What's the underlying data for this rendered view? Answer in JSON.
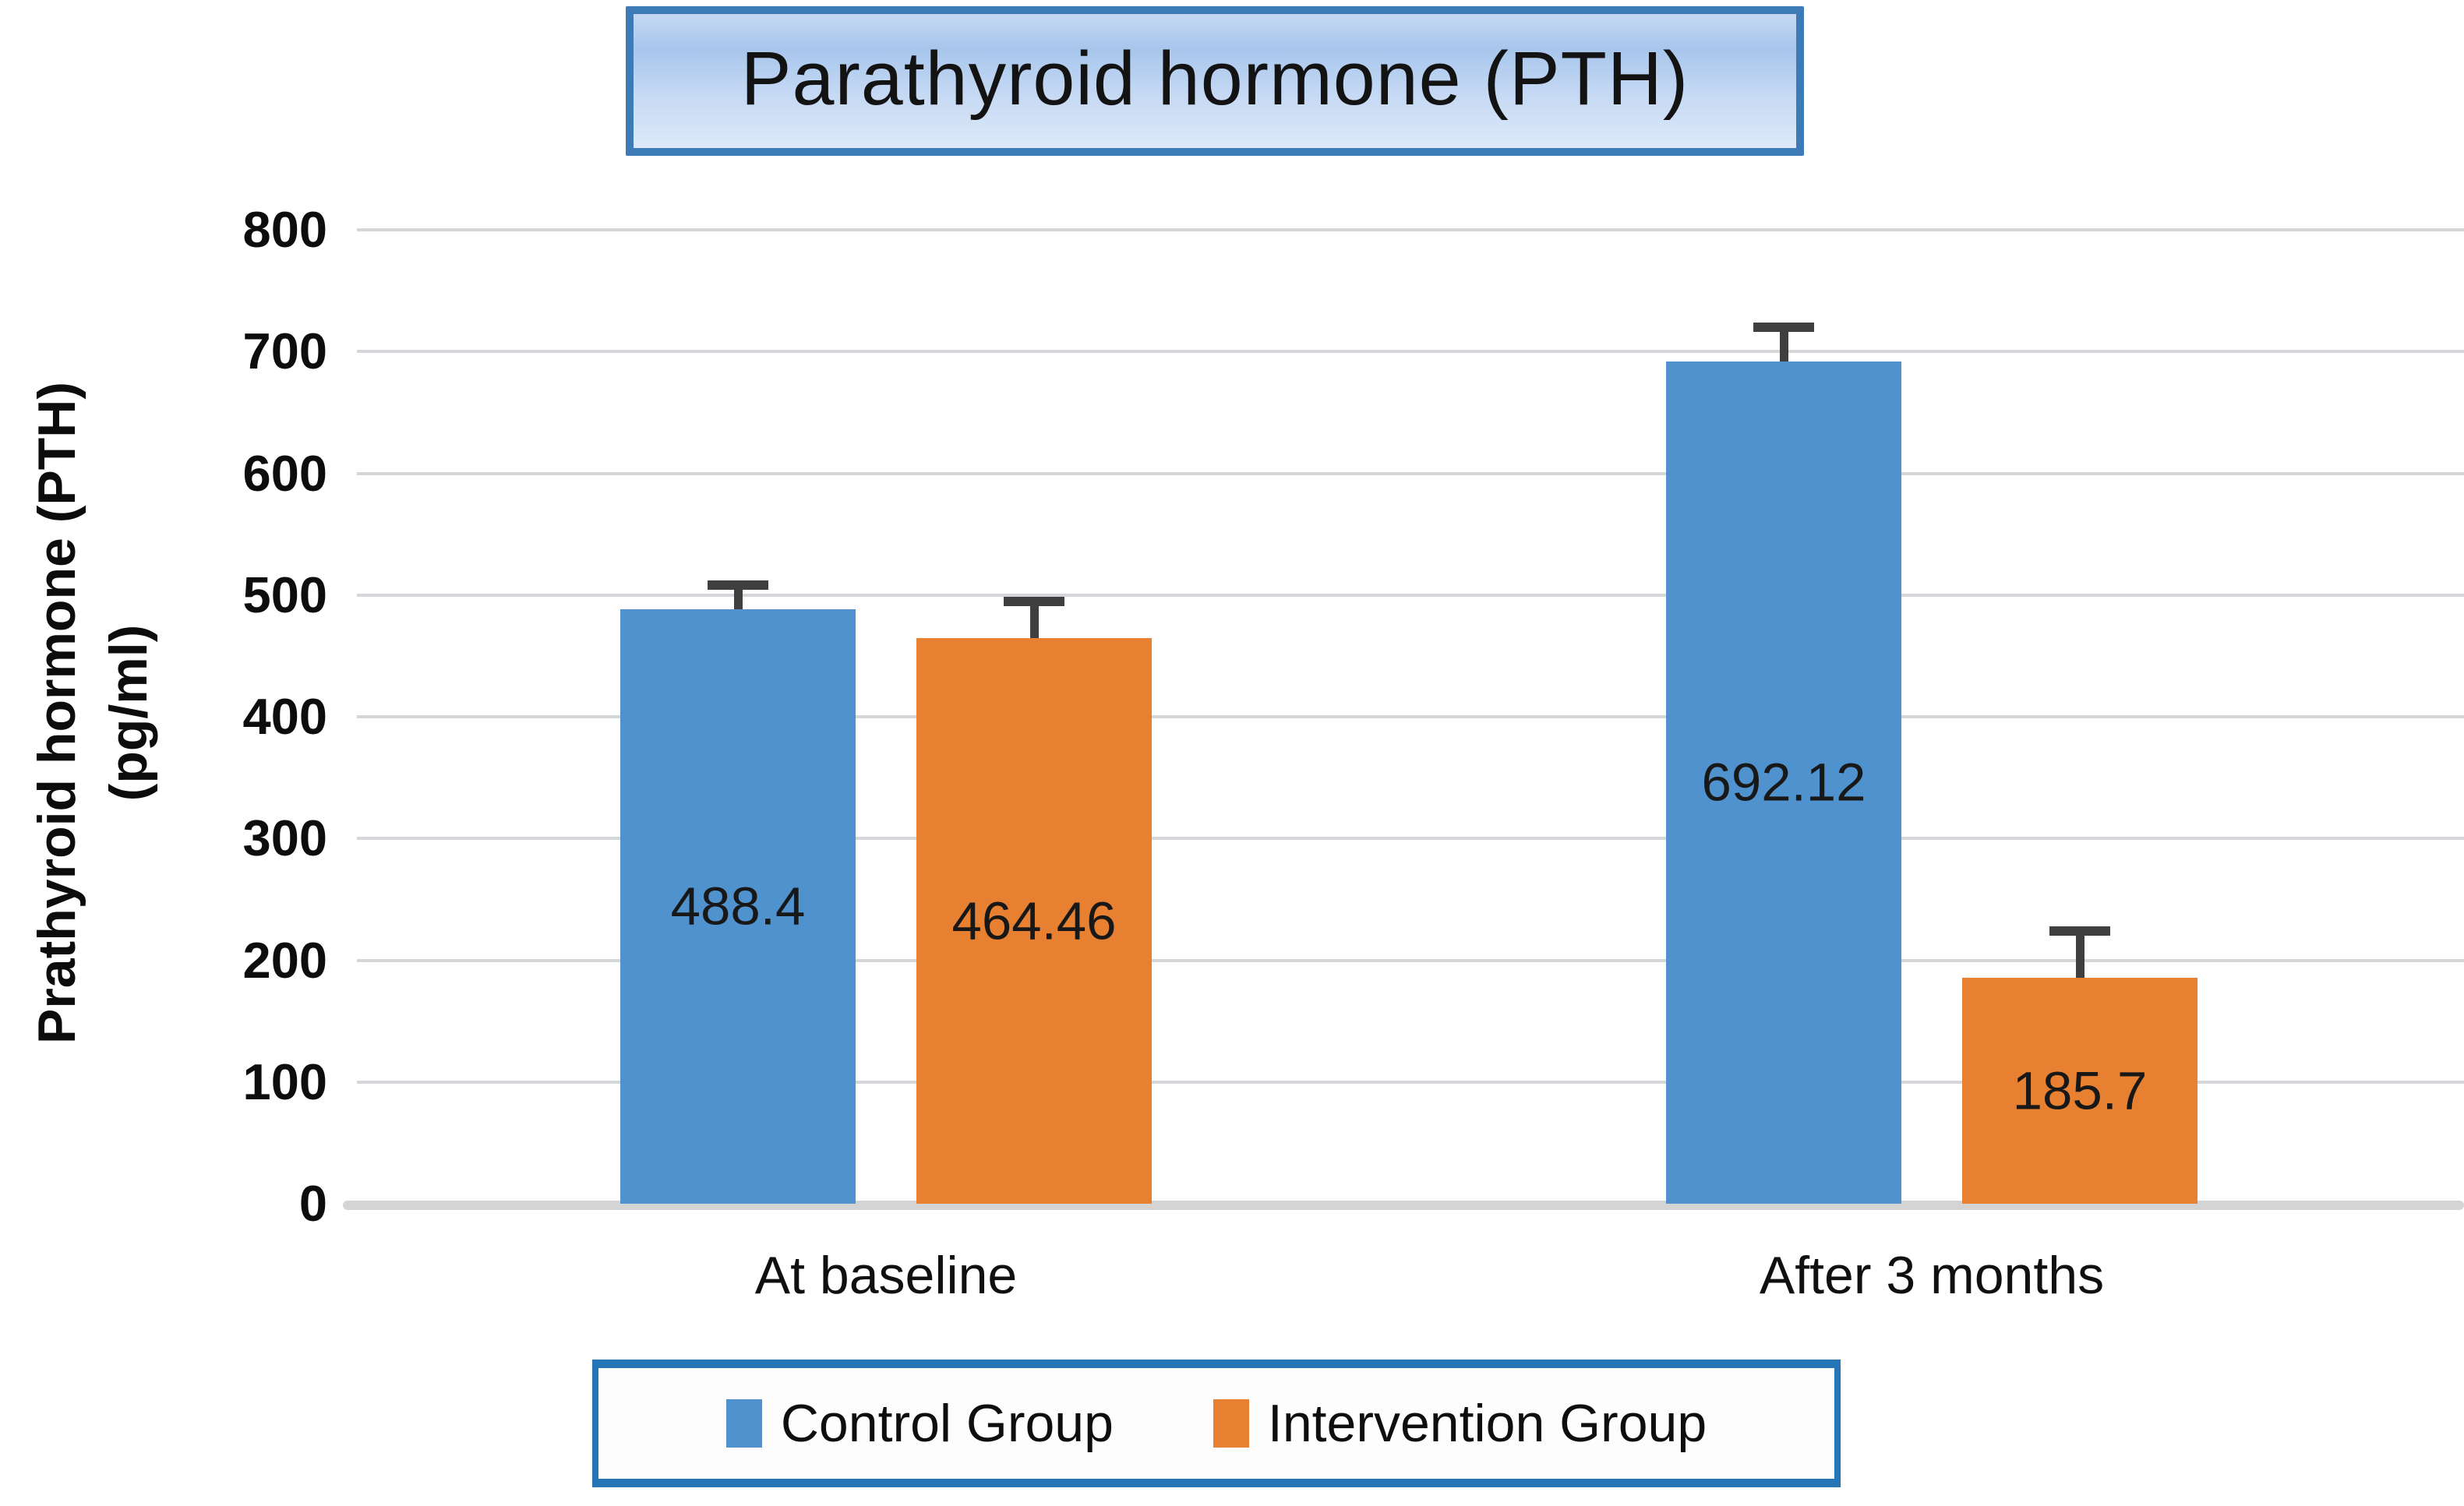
{
  "title_box": {
    "text": "Parathyroid hormone (PTH)"
  },
  "y_axis": {
    "title_line1": "Prathyroid hormone (PTH)",
    "title_line2": "(pg/ml)",
    "ticks": [
      0,
      100,
      200,
      300,
      400,
      500,
      600,
      700,
      800
    ]
  },
  "chart_data": {
    "type": "bar",
    "title": "Parathyroid hormone (PTH)",
    "ylabel": "Prathyroid hormone (PTH) (pg/ml)",
    "xlabel": "",
    "ylim": [
      0,
      800
    ],
    "ytick_step": 100,
    "grid": true,
    "legend_position": "bottom",
    "categories": [
      "At baseline",
      "After 3 months"
    ],
    "series": [
      {
        "name": "Control Group",
        "color": "#4F92CE",
        "values": [
          488.4,
          692.12
        ],
        "value_labels": [
          "488.4",
          "692.12"
        ],
        "errors_plus": [
          20,
          28
        ]
      },
      {
        "name": "Intervention Group",
        "color": "#E88032",
        "values": [
          464.46,
          185.7
        ],
        "value_labels": [
          "464.46",
          "185.7"
        ],
        "errors_plus": [
          30,
          38
        ]
      }
    ]
  },
  "colors": {
    "gridline": "#d5d6da",
    "axis_line": "#d4d4d4",
    "error_bar": "#3f3f3f",
    "title_border": "#3d7bb7",
    "legend_border": "#2676b7"
  }
}
